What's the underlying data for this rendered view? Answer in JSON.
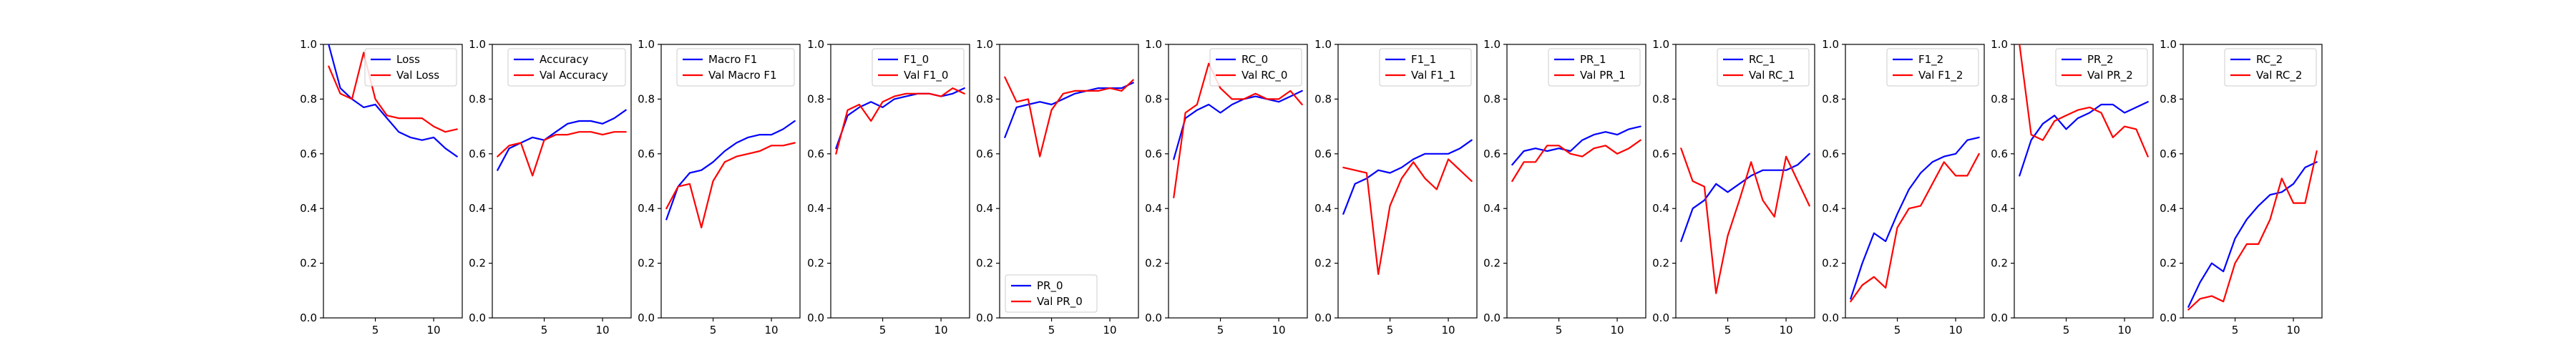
{
  "chart_data": [
    {
      "type": "line",
      "legend": "top-right",
      "ylim": [
        0,
        1
      ],
      "x": [
        1,
        2,
        3,
        4,
        5,
        6,
        7,
        8,
        9,
        10,
        11,
        12
      ],
      "xticks": [
        5,
        10
      ],
      "yticks": [
        0.0,
        0.2,
        0.4,
        0.6,
        0.8,
        1.0
      ],
      "series": [
        {
          "name": "Loss",
          "color": "#0000ff",
          "values": [
            1.0,
            0.84,
            0.8,
            0.77,
            0.78,
            0.73,
            0.68,
            0.66,
            0.65,
            0.66,
            0.62,
            0.59
          ]
        },
        {
          "name": "Val Loss",
          "color": "#ff0000",
          "values": [
            0.92,
            0.82,
            0.8,
            0.97,
            0.8,
            0.74,
            0.73,
            0.73,
            0.73,
            0.7,
            0.68,
            0.69
          ]
        }
      ]
    },
    {
      "type": "line",
      "legend": "top-right",
      "ylim": [
        0,
        1
      ],
      "x": [
        1,
        2,
        3,
        4,
        5,
        6,
        7,
        8,
        9,
        10,
        11,
        12
      ],
      "xticks": [
        5,
        10
      ],
      "yticks": [
        0.0,
        0.2,
        0.4,
        0.6,
        0.8,
        1.0
      ],
      "series": [
        {
          "name": "Accuracy",
          "color": "#0000ff",
          "values": [
            0.54,
            0.62,
            0.64,
            0.66,
            0.65,
            0.68,
            0.71,
            0.72,
            0.72,
            0.71,
            0.73,
            0.76
          ]
        },
        {
          "name": "Val Accuracy",
          "color": "#ff0000",
          "values": [
            0.59,
            0.63,
            0.64,
            0.52,
            0.65,
            0.67,
            0.67,
            0.68,
            0.68,
            0.67,
            0.68,
            0.68
          ]
        }
      ]
    },
    {
      "type": "line",
      "legend": "top-right",
      "ylim": [
        0,
        1
      ],
      "x": [
        1,
        2,
        3,
        4,
        5,
        6,
        7,
        8,
        9,
        10,
        11,
        12
      ],
      "xticks": [
        5,
        10
      ],
      "yticks": [
        0.0,
        0.2,
        0.4,
        0.6,
        0.8,
        1.0
      ],
      "series": [
        {
          "name": "Macro F1",
          "color": "#0000ff",
          "values": [
            0.36,
            0.48,
            0.53,
            0.54,
            0.57,
            0.61,
            0.64,
            0.66,
            0.67,
            0.67,
            0.69,
            0.72
          ]
        },
        {
          "name": "Val Macro F1",
          "color": "#ff0000",
          "values": [
            0.4,
            0.48,
            0.49,
            0.33,
            0.5,
            0.57,
            0.59,
            0.6,
            0.61,
            0.63,
            0.63,
            0.64
          ]
        }
      ]
    },
    {
      "type": "line",
      "legend": "top-right",
      "ylim": [
        0,
        1
      ],
      "x": [
        1,
        2,
        3,
        4,
        5,
        6,
        7,
        8,
        9,
        10,
        11,
        12
      ],
      "xticks": [
        5,
        10
      ],
      "yticks": [
        0.0,
        0.2,
        0.4,
        0.6,
        0.8,
        1.0
      ],
      "series": [
        {
          "name": "F1_0",
          "color": "#0000ff",
          "values": [
            0.62,
            0.74,
            0.77,
            0.79,
            0.77,
            0.8,
            0.81,
            0.82,
            0.82,
            0.81,
            0.82,
            0.84
          ]
        },
        {
          "name": "Val F1_0",
          "color": "#ff0000",
          "values": [
            0.6,
            0.76,
            0.78,
            0.72,
            0.79,
            0.81,
            0.82,
            0.82,
            0.82,
            0.81,
            0.84,
            0.82
          ]
        }
      ]
    },
    {
      "type": "line",
      "legend": "bottom-left",
      "ylim": [
        0,
        1
      ],
      "x": [
        1,
        2,
        3,
        4,
        5,
        6,
        7,
        8,
        9,
        10,
        11,
        12
      ],
      "xticks": [
        5,
        10
      ],
      "yticks": [
        0.0,
        0.2,
        0.4,
        0.6,
        0.8,
        1.0
      ],
      "series": [
        {
          "name": "PR_0",
          "color": "#0000ff",
          "values": [
            0.66,
            0.77,
            0.78,
            0.79,
            0.78,
            0.8,
            0.82,
            0.83,
            0.84,
            0.84,
            0.84,
            0.86
          ]
        },
        {
          "name": "Val PR_0",
          "color": "#ff0000",
          "values": [
            0.88,
            0.79,
            0.8,
            0.59,
            0.76,
            0.82,
            0.83,
            0.83,
            0.83,
            0.84,
            0.83,
            0.87
          ]
        }
      ]
    },
    {
      "type": "line",
      "legend": "top-right",
      "ylim": [
        0,
        1
      ],
      "x": [
        1,
        2,
        3,
        4,
        5,
        6,
        7,
        8,
        9,
        10,
        11,
        12
      ],
      "xticks": [
        5,
        10
      ],
      "yticks": [
        0.0,
        0.2,
        0.4,
        0.6,
        0.8,
        1.0
      ],
      "series": [
        {
          "name": "RC_0",
          "color": "#0000ff",
          "values": [
            0.58,
            0.73,
            0.76,
            0.78,
            0.75,
            0.78,
            0.8,
            0.81,
            0.8,
            0.79,
            0.81,
            0.83
          ]
        },
        {
          "name": "Val RC_0",
          "color": "#ff0000",
          "values": [
            0.44,
            0.75,
            0.78,
            0.93,
            0.84,
            0.8,
            0.8,
            0.82,
            0.8,
            0.8,
            0.83,
            0.78
          ]
        }
      ]
    },
    {
      "type": "line",
      "legend": "top-right",
      "ylim": [
        0,
        1
      ],
      "x": [
        1,
        2,
        3,
        4,
        5,
        6,
        7,
        8,
        9,
        10,
        11,
        12
      ],
      "xticks": [
        5,
        10
      ],
      "yticks": [
        0.0,
        0.2,
        0.4,
        0.6,
        0.8,
        1.0
      ],
      "series": [
        {
          "name": "F1_1",
          "color": "#0000ff",
          "values": [
            0.38,
            0.49,
            0.51,
            0.54,
            0.53,
            0.55,
            0.58,
            0.6,
            0.6,
            0.6,
            0.62,
            0.65
          ]
        },
        {
          "name": "Val F1_1",
          "color": "#ff0000",
          "values": [
            0.55,
            0.54,
            0.53,
            0.16,
            0.41,
            0.51,
            0.57,
            0.51,
            0.47,
            0.58,
            0.54,
            0.5
          ]
        }
      ]
    },
    {
      "type": "line",
      "legend": "top-right",
      "ylim": [
        0,
        1
      ],
      "x": [
        1,
        2,
        3,
        4,
        5,
        6,
        7,
        8,
        9,
        10,
        11,
        12
      ],
      "xticks": [
        5,
        10
      ],
      "yticks": [
        0.0,
        0.2,
        0.4,
        0.6,
        0.8,
        1.0
      ],
      "series": [
        {
          "name": "PR_1",
          "color": "#0000ff",
          "values": [
            0.56,
            0.61,
            0.62,
            0.61,
            0.62,
            0.61,
            0.65,
            0.67,
            0.68,
            0.67,
            0.69,
            0.7
          ]
        },
        {
          "name": "Val PR_1",
          "color": "#ff0000",
          "values": [
            0.5,
            0.57,
            0.57,
            0.63,
            0.63,
            0.6,
            0.59,
            0.62,
            0.63,
            0.6,
            0.62,
            0.65
          ]
        }
      ]
    },
    {
      "type": "line",
      "legend": "top-right",
      "ylim": [
        0,
        1
      ],
      "x": [
        1,
        2,
        3,
        4,
        5,
        6,
        7,
        8,
        9,
        10,
        11,
        12
      ],
      "xticks": [
        5,
        10
      ],
      "yticks": [
        0.0,
        0.2,
        0.4,
        0.6,
        0.8,
        1.0
      ],
      "series": [
        {
          "name": "RC_1",
          "color": "#0000ff",
          "values": [
            0.28,
            0.4,
            0.43,
            0.49,
            0.46,
            0.49,
            0.52,
            0.54,
            0.54,
            0.54,
            0.56,
            0.6
          ]
        },
        {
          "name": "Val RC_1",
          "color": "#ff0000",
          "values": [
            0.62,
            0.5,
            0.48,
            0.09,
            0.3,
            0.43,
            0.57,
            0.43,
            0.37,
            0.59,
            0.5,
            0.41
          ]
        }
      ]
    },
    {
      "type": "line",
      "legend": "top-right",
      "ylim": [
        0,
        1
      ],
      "x": [
        1,
        2,
        3,
        4,
        5,
        6,
        7,
        8,
        9,
        10,
        11,
        12
      ],
      "xticks": [
        5,
        10
      ],
      "yticks": [
        0.0,
        0.2,
        0.4,
        0.6,
        0.8,
        1.0
      ],
      "series": [
        {
          "name": "F1_2",
          "color": "#0000ff",
          "values": [
            0.07,
            0.2,
            0.31,
            0.28,
            0.38,
            0.47,
            0.53,
            0.57,
            0.59,
            0.6,
            0.65,
            0.66
          ]
        },
        {
          "name": "Val F1_2",
          "color": "#ff0000",
          "values": [
            0.06,
            0.12,
            0.15,
            0.11,
            0.33,
            0.4,
            0.41,
            0.49,
            0.57,
            0.52,
            0.52,
            0.6
          ]
        }
      ]
    },
    {
      "type": "line",
      "legend": "top-right",
      "ylim": [
        0,
        1
      ],
      "x": [
        1,
        2,
        3,
        4,
        5,
        6,
        7,
        8,
        9,
        10,
        11,
        12
      ],
      "xticks": [
        5,
        10
      ],
      "yticks": [
        0.0,
        0.2,
        0.4,
        0.6,
        0.8,
        1.0
      ],
      "series": [
        {
          "name": "PR_2",
          "color": "#0000ff",
          "values": [
            0.52,
            0.65,
            0.71,
            0.74,
            0.69,
            0.73,
            0.75,
            0.78,
            0.78,
            0.75,
            0.77,
            0.79
          ]
        },
        {
          "name": "Val PR_2",
          "color": "#ff0000",
          "values": [
            1.0,
            0.67,
            0.65,
            0.72,
            0.74,
            0.76,
            0.77,
            0.75,
            0.66,
            0.7,
            0.69,
            0.59
          ]
        }
      ]
    },
    {
      "type": "line",
      "legend": "top-right",
      "ylim": [
        0,
        1
      ],
      "x": [
        1,
        2,
        3,
        4,
        5,
        6,
        7,
        8,
        9,
        10,
        11,
        12
      ],
      "xticks": [
        5,
        10
      ],
      "yticks": [
        0.0,
        0.2,
        0.4,
        0.6,
        0.8,
        1.0
      ],
      "series": [
        {
          "name": "RC_2",
          "color": "#0000ff",
          "values": [
            0.04,
            0.13,
            0.2,
            0.17,
            0.29,
            0.36,
            0.41,
            0.45,
            0.46,
            0.49,
            0.55,
            0.57
          ]
        },
        {
          "name": "Val RC_2",
          "color": "#ff0000",
          "values": [
            0.03,
            0.07,
            0.08,
            0.06,
            0.2,
            0.27,
            0.27,
            0.36,
            0.51,
            0.42,
            0.42,
            0.61
          ]
        }
      ]
    }
  ]
}
